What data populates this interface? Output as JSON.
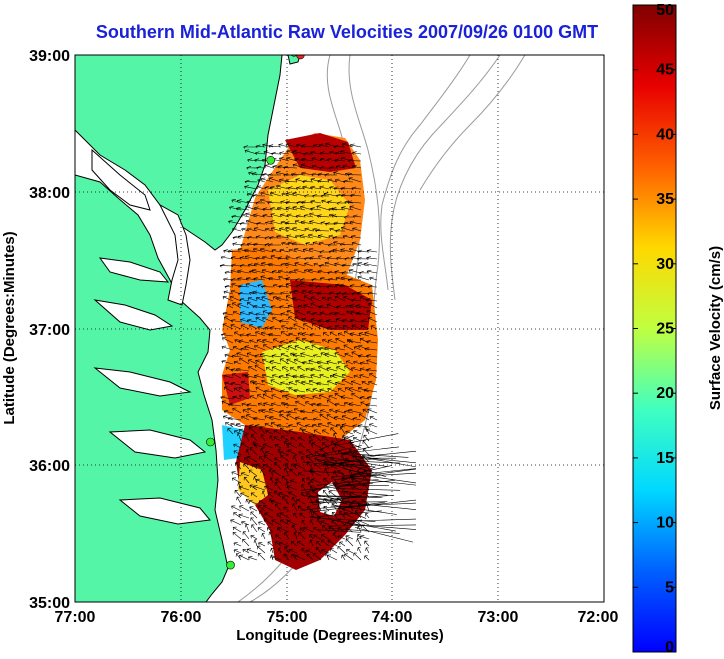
{
  "title": "Southern Mid-Atlantic Raw Velocities 2007/09/26 0100 GMT",
  "map": {
    "xlabel": "Longitude (Degrees:Minutes)",
    "ylabel": "Latitude (Degrees:Minutes)",
    "x_ticks": [
      "77:00",
      "76:00",
      "75:00",
      "74:00",
      "73:00",
      "72:00"
    ],
    "y_ticks": [
      "39:00",
      "38:00",
      "37:00",
      "36:00",
      "35:00"
    ],
    "lon_range": [
      -77,
      -72
    ],
    "lat_range": [
      35,
      39
    ],
    "grid": "dotted",
    "colors": {
      "land": "#55f5a8",
      "coast": "#000000",
      "bathymetry": "#9a9a9a",
      "stations": "#33ee33",
      "station_active": "#ee2222"
    }
  },
  "colorbar": {
    "label": "Surface Velocity (cm/s)",
    "ticks": [
      "0",
      "5",
      "10",
      "15",
      "20",
      "25",
      "30",
      "35",
      "40",
      "45",
      "50"
    ],
    "range": [
      0,
      50
    ],
    "colormap": "jet"
  },
  "stations": [
    {
      "lon": -74.87,
      "lat": 39.0,
      "active": true
    },
    {
      "lon": -74.93,
      "lat": 39.02,
      "active": false
    },
    {
      "lon": -75.15,
      "lat": 38.23,
      "active": false
    },
    {
      "lon": -75.72,
      "lat": 36.17,
      "active": false
    },
    {
      "lon": -75.53,
      "lat": 35.27,
      "active": false
    }
  ]
}
